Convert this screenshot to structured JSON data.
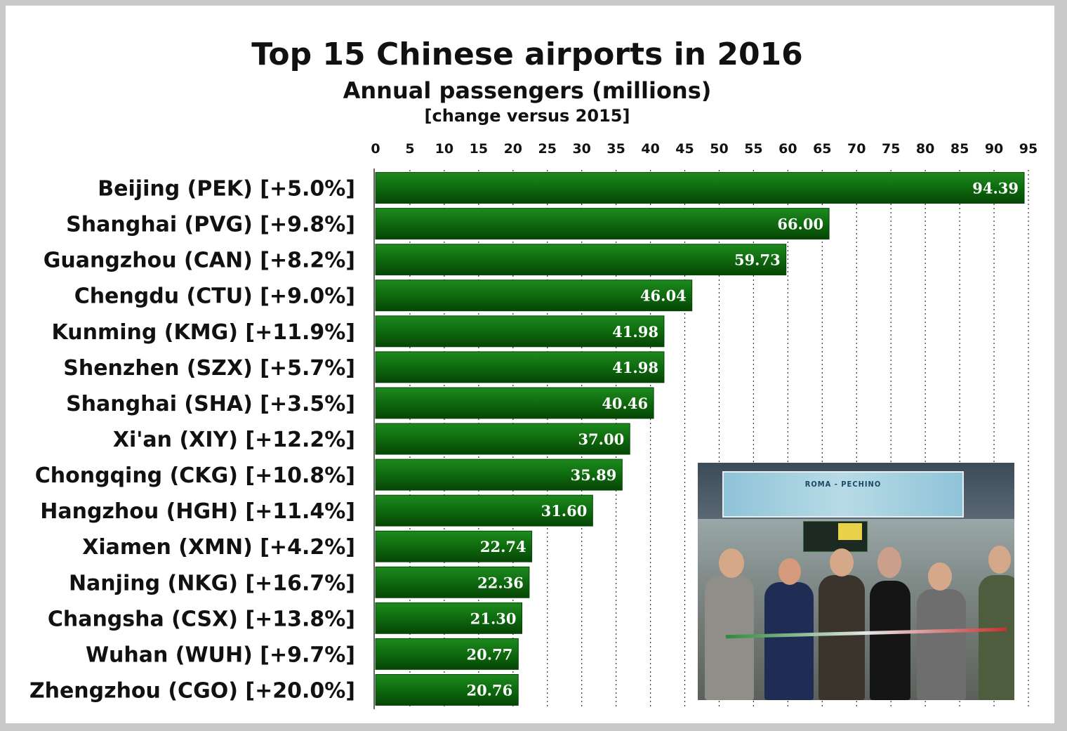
{
  "chart_data": {
    "type": "bar",
    "orientation": "horizontal",
    "title": "Top 15 Chinese airports in 2016",
    "subtitle": "Annual passengers (millions)",
    "note": "[change versus 2015]",
    "categories": [
      "Beijing (PEK) [+5.0%]",
      "Shanghai (PVG) [+9.8%]",
      "Guangzhou (CAN) [+8.2%]",
      "Chengdu (CTU) [+9.0%]",
      "Kunming (KMG) [+11.9%]",
      "Shenzhen (SZX) [+5.7%]",
      "Shanghai (SHA) [+3.5%]",
      "Xi'an (XIY) [+12.2%]",
      "Chongqing (CKG) [+10.8%]",
      "Hangzhou (HGH) [+11.4%]",
      "Xiamen (XMN) [+4.2%]",
      "Nanjing (NKG) [+16.7%]",
      "Changsha (CSX) [+13.8%]",
      "Wuhan (WUH) [+9.7%]",
      "Zhengzhou (CGO) [+20.0%]"
    ],
    "values": [
      94.39,
      66.0,
      59.73,
      46.04,
      41.98,
      41.98,
      40.46,
      37.0,
      35.89,
      31.6,
      22.74,
      22.36,
      21.3,
      20.77,
      20.76
    ],
    "data_labels": [
      "94.39",
      "66.00",
      "59.73",
      "46.04",
      "41.98",
      "41.98",
      "40.46",
      "37.00",
      "35.89",
      "31.60",
      "22.74",
      "22.36",
      "21.30",
      "20.77",
      "20.76"
    ],
    "xlim": [
      0,
      95
    ],
    "ticks": [
      0,
      5,
      10,
      15,
      20,
      25,
      30,
      35,
      40,
      45,
      50,
      55,
      60,
      65,
      70,
      75,
      80,
      85,
      90,
      95
    ],
    "axis_position": "top",
    "grid": "vertical dotted",
    "bar_color": "#0f6e0f",
    "label_color": "#ffffff"
  },
  "photo": {
    "banner_text": "ROMA - PECHINO"
  }
}
